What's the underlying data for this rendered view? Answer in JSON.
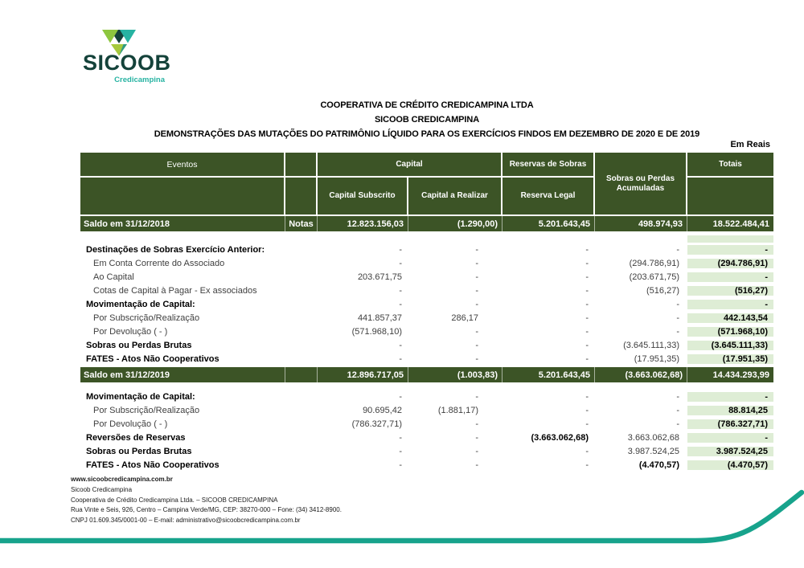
{
  "logo": {
    "brand": "SICOOB",
    "unit": "Credicampina"
  },
  "titles": {
    "line1": "COOPERATIVA DE CRÉDITO CREDICAMPINA LTDA",
    "line2": "SICOOB CREDICAMPINA",
    "line3": "DEMONSTRAÇÕES DAS MUTAÇÕES DO PATRIMÔNIO LÍQUIDO PARA OS EXERCÍCIOS FINDOS EM DEZEMBRO DE 2020 E DE 2019",
    "currency_note": "Em Reais"
  },
  "table": {
    "header": {
      "eventos": "Eventos",
      "capital": "Capital",
      "capital_subscrito": "Capital Subscrito",
      "capital_a_realizar": "Capital a Realizar",
      "reservas_de_sobras": "Reservas de Sobras",
      "reserva_legal": "Reserva Legal",
      "sobras_ou_perdas_acumuladas": "Sobras ou Perdas Acumuladas",
      "totais": "Totais"
    },
    "saldo2018": {
      "label": "Saldo em 31/12/2018",
      "notas": "Notas",
      "values": [
        "12.823.156,03",
        "(1.290,00)",
        "5.201.643,45",
        "498.974,93",
        "18.522.484,41"
      ]
    },
    "sections": [
      {
        "rows": [
          {
            "label": "Destinações de Sobras Exercício Anterior:",
            "bold": true,
            "indent": false,
            "cells": [
              "-",
              "-",
              "-",
              "-",
              "-"
            ]
          },
          {
            "label": "Em Conta Corrente do Associado",
            "bold": false,
            "indent": true,
            "cells": [
              "-",
              "-",
              "-",
              "(294.786,91)",
              "(294.786,91)"
            ]
          },
          {
            "label": "Ao Capital",
            "bold": false,
            "indent": true,
            "cells": [
              "203.671,75",
              "-",
              "-",
              "(203.671,75)",
              "-"
            ]
          },
          {
            "label": "Cotas de Capital à Pagar - Ex associados",
            "bold": false,
            "indent": true,
            "cells": [
              "-",
              "-",
              "-",
              "(516,27)",
              "(516,27)"
            ]
          },
          {
            "label": "Movimentação de Capital:",
            "bold": true,
            "indent": false,
            "cells": [
              "-",
              "-",
              "-",
              "-",
              "-"
            ]
          },
          {
            "label": "Por Subscrição/Realização",
            "bold": false,
            "indent": true,
            "cells": [
              "441.857,37",
              "286,17",
              "-",
              "-",
              "442.143,54"
            ]
          },
          {
            "label": "Por  Devolução ( - )",
            "bold": false,
            "indent": true,
            "cells": [
              "(571.968,10)",
              "-",
              "-",
              "-",
              "(571.968,10)"
            ]
          },
          {
            "label": "Sobras ou Perdas Brutas",
            "bold": true,
            "indent": false,
            "cells": [
              "-",
              "-",
              "-",
              "(3.645.111,33)",
              "(3.645.111,33)"
            ]
          },
          {
            "label": "FATES - Atos Não Cooperativos",
            "bold": true,
            "indent": false,
            "cells": [
              "-",
              "-",
              "-",
              "(17.951,35)",
              "(17.951,35)"
            ]
          }
        ]
      },
      {
        "rows": [
          {
            "label": "Movimentação de Capital:",
            "bold": true,
            "indent": false,
            "cells": [
              "-",
              "-",
              "-",
              "-",
              "-"
            ]
          },
          {
            "label": "Por Subscrição/Realização",
            "bold": false,
            "indent": true,
            "cells": [
              "90.695,42",
              "(1.881,17)",
              "-",
              "-",
              "88.814,25"
            ]
          },
          {
            "label": "Por  Devolução ( - )",
            "bold": false,
            "indent": true,
            "cells": [
              "(786.327,71)",
              "-",
              "-",
              "-",
              "(786.327,71)"
            ]
          },
          {
            "label": "Reversões de Reservas",
            "bold": true,
            "indent": false,
            "cells": [
              "-",
              "-",
              {
                "v": "(3.663.062,68)",
                "b": true
              },
              "3.663.062,68",
              "-"
            ]
          },
          {
            "label": "Sobras ou Perdas Brutas",
            "bold": true,
            "indent": false,
            "cells": [
              "-",
              "-",
              "-",
              "3.987.524,25",
              "3.987.524,25"
            ]
          },
          {
            "label": "FATES - Atos Não Cooperativos",
            "bold": true,
            "indent": false,
            "cells": [
              "-",
              "-",
              "-",
              {
                "v": "(4.470,57)",
                "b": true
              },
              "(4.470,57)"
            ]
          }
        ]
      }
    ],
    "saldo2019": {
      "label": "Saldo em 31/12/2019",
      "notas": "",
      "values": [
        "12.896.717,05",
        "(1.003,83)",
        "5.201.643,45",
        "(3.663.062,68)",
        "14.434.293,99"
      ]
    }
  },
  "footer": {
    "lines": [
      "www.sicoobcredicampina.com.br",
      "Sicoob Credicampina",
      "Cooperativa de Crédito Credicampina Ltda. – SICOOB CREDICAMPINA",
      "Rua Vinte e Seis, 926, Centro – Campina Verde/MG, CEP: 38270-000 – Fone: (34) 3412-8900.",
      "CNPJ 01.609.345/0001-00 – E-mail: administrativo@sicoobcredicampina.com.br"
    ]
  },
  "colors": {
    "header_green": "#3C5426",
    "light_green": "#DEEDD5",
    "teal": "#17A38C",
    "logo_dark": "#14423A",
    "logo_lime": "#8DC63F",
    "logo_teal": "#27B3A2"
  }
}
